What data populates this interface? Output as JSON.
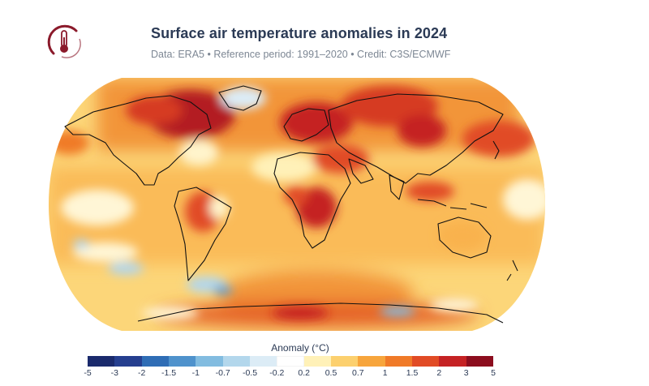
{
  "header": {
    "title": "Surface air temperature anomalies in 2024",
    "subtitle": "Data: ERA5 • Reference period: 1991–2020 • Credit: C3S/ECMWF"
  },
  "logo": {
    "icon": "thermometer-sun-icon",
    "color": "#8b1a2b"
  },
  "map": {
    "projection": "Robinson",
    "variable": "Surface air temperature anomaly",
    "year": "2024"
  },
  "legend": {
    "title": "Anomaly (°C)",
    "ticks": [
      "-5",
      "-3",
      "-2",
      "-1.5",
      "-1",
      "-0.7",
      "-0.5",
      "-0.2",
      "0.2",
      "0.5",
      "0.7",
      "1",
      "1.5",
      "2",
      "3",
      "5"
    ],
    "colors": [
      "#1a2a6c",
      "#253f8f",
      "#2f6db5",
      "#4f92cc",
      "#82bce0",
      "#b3d7ec",
      "#dcecf6",
      "#ffffff",
      "#fff1b8",
      "#fcd06e",
      "#f7a53c",
      "#f07a28",
      "#e14b25",
      "#c52224",
      "#8c0d1e"
    ]
  }
}
